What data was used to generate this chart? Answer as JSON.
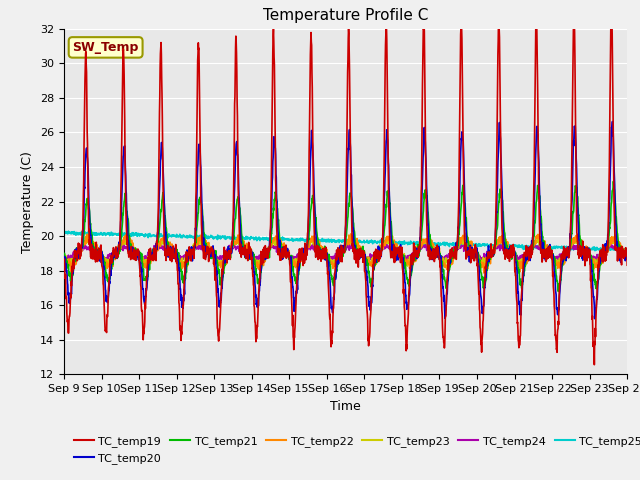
{
  "title": "Temperature Profile C",
  "xlabel": "Time",
  "ylabel": "Temperature (C)",
  "ylim": [
    12,
    32
  ],
  "x_tick_labels": [
    "Sep 9",
    "Sep 10",
    "Sep 11",
    "Sep 12",
    "Sep 13",
    "Sep 14",
    "Sep 15",
    "Sep 16",
    "Sep 17",
    "Sep 18",
    "Sep 19",
    "Sep 20",
    "Sep 21",
    "Sep 22",
    "Sep 23",
    "Sep 24"
  ],
  "yticks": [
    12,
    14,
    16,
    18,
    20,
    22,
    24,
    26,
    28,
    30,
    32
  ],
  "series": {
    "TC_temp19": {
      "color": "#cc0000",
      "lw": 1.2,
      "zorder": 7
    },
    "TC_temp20": {
      "color": "#0000cc",
      "lw": 1.2,
      "zorder": 6
    },
    "TC_temp21": {
      "color": "#00bb00",
      "lw": 1.2,
      "zorder": 5
    },
    "TC_temp22": {
      "color": "#ff8800",
      "lw": 1.2,
      "zorder": 4
    },
    "TC_temp23": {
      "color": "#cccc00",
      "lw": 1.2,
      "zorder": 3
    },
    "TC_temp24": {
      "color": "#aa00aa",
      "lw": 1.2,
      "zorder": 2
    },
    "TC_temp25": {
      "color": "#00cccc",
      "lw": 1.2,
      "zorder": 1
    }
  },
  "legend_order": [
    "TC_temp19",
    "TC_temp20",
    "TC_temp21",
    "TC_temp22",
    "TC_temp23",
    "TC_temp24",
    "TC_temp25"
  ],
  "sw_temp_label": "SW_Temp",
  "sw_temp_color": "#8b0000",
  "sw_temp_bg": "#ffffcc",
  "sw_temp_border": "#999900",
  "fig_bg": "#f0f0f0",
  "plot_bg": "#e8e8e8",
  "grid_color": "#ffffff",
  "title_fontsize": 11,
  "axis_fontsize": 9,
  "tick_fontsize": 8,
  "legend_fontsize": 8
}
